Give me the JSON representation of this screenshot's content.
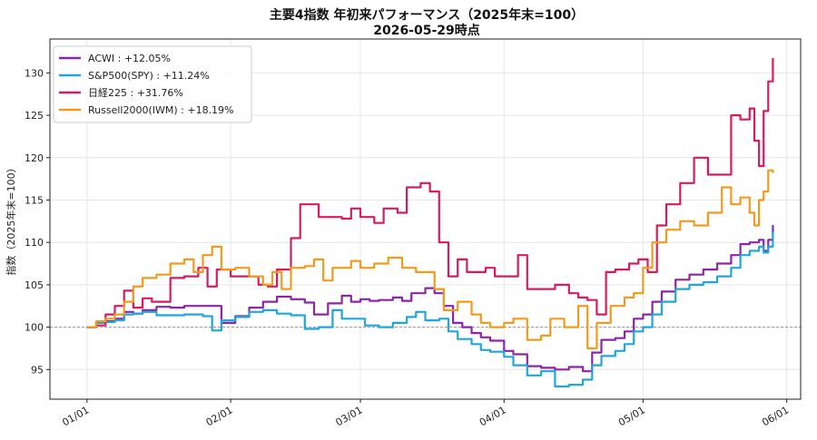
{
  "chart_data": {
    "type": "line",
    "title": "主要4指数 年初来パフォーマンス（2025年末=100）",
    "subtitle": "2026-05-29時点",
    "ylabel": "指数（2025年末=100）",
    "xlabel": "",
    "ylim": [
      91.5,
      134
    ],
    "yticks": [
      95,
      100,
      105,
      110,
      115,
      120,
      125,
      130
    ],
    "xlim": [
      "2025-12-24",
      "2026-06-04"
    ],
    "xticks": [
      {
        "date": "2026-01-01",
        "label": "01/01"
      },
      {
        "date": "2026-02-01",
        "label": "02/01"
      },
      {
        "date": "2026-03-01",
        "label": "03/01"
      },
      {
        "date": "2026-04-01",
        "label": "04/01"
      },
      {
        "date": "2026-05-01",
        "label": "05/01"
      },
      {
        "date": "2026-06-01",
        "label": "06/01"
      }
    ],
    "baseline": 100,
    "grid": true,
    "legend_position": "top-left",
    "series": [
      {
        "name": "ACWI : +12.05%",
        "color": "#8e24aa",
        "points": [
          [
            "2026-01-01",
            100.0
          ],
          [
            "2026-01-03",
            100.6
          ],
          [
            "2026-01-05",
            100.7
          ],
          [
            "2026-01-07",
            101.0
          ],
          [
            "2026-01-09",
            101.8
          ],
          [
            "2026-01-11",
            101.6
          ],
          [
            "2026-01-13",
            102.0
          ],
          [
            "2026-01-16",
            102.4
          ],
          [
            "2026-01-19",
            102.3
          ],
          [
            "2026-01-22",
            102.5
          ],
          [
            "2026-01-26",
            102.5
          ],
          [
            "2026-01-29",
            102.5
          ],
          [
            "2026-01-30",
            100.5
          ],
          [
            "2026-02-02",
            101.3
          ],
          [
            "2026-02-05",
            102.3
          ],
          [
            "2026-02-08",
            103.0
          ],
          [
            "2026-02-11",
            103.6
          ],
          [
            "2026-02-14",
            103.3
          ],
          [
            "2026-02-17",
            102.9
          ],
          [
            "2026-02-19",
            101.5
          ],
          [
            "2026-02-22",
            102.8
          ],
          [
            "2026-02-25",
            103.7
          ],
          [
            "2026-02-27",
            103.0
          ],
          [
            "2026-03-01",
            103.3
          ],
          [
            "2026-03-03",
            103.1
          ],
          [
            "2026-03-05",
            103.2
          ],
          [
            "2026-03-08",
            103.5
          ],
          [
            "2026-03-10",
            103.1
          ],
          [
            "2026-03-12",
            104.0
          ],
          [
            "2026-03-15",
            104.6
          ],
          [
            "2026-03-17",
            104.0
          ],
          [
            "2026-03-19",
            102.5
          ],
          [
            "2026-03-21",
            100.5
          ],
          [
            "2026-03-23",
            100.0
          ],
          [
            "2026-03-25",
            99.3
          ],
          [
            "2026-03-27",
            98.8
          ],
          [
            "2026-03-29",
            98.4
          ],
          [
            "2026-04-01",
            97.2
          ],
          [
            "2026-04-03",
            96.8
          ],
          [
            "2026-04-06",
            95.4
          ],
          [
            "2026-04-09",
            95.2
          ],
          [
            "2026-04-12",
            95.0
          ],
          [
            "2026-04-15",
            95.3
          ],
          [
            "2026-04-18",
            94.8
          ],
          [
            "2026-04-20",
            97.0
          ],
          [
            "2026-04-22",
            98.5
          ],
          [
            "2026-04-25",
            98.7
          ],
          [
            "2026-04-27",
            99.5
          ],
          [
            "2026-04-29",
            101.0
          ],
          [
            "2026-05-01",
            101.5
          ],
          [
            "2026-05-03",
            103.0
          ],
          [
            "2026-05-05",
            104.2
          ],
          [
            "2026-05-08",
            105.6
          ],
          [
            "2026-05-11",
            106.2
          ],
          [
            "2026-05-14",
            106.8
          ],
          [
            "2026-05-17",
            107.5
          ],
          [
            "2026-05-20",
            108.5
          ],
          [
            "2026-05-22",
            109.8
          ],
          [
            "2026-05-24",
            110.0
          ],
          [
            "2026-05-26",
            110.3
          ],
          [
            "2026-05-27",
            109.0
          ],
          [
            "2026-05-28",
            110.3
          ],
          [
            "2026-05-29",
            112.05
          ]
        ]
      },
      {
        "name": "S&P500(SPY) : +11.24%",
        "color": "#1ea7d8",
        "points": [
          [
            "2026-01-01",
            100.0
          ],
          [
            "2026-01-03",
            100.5
          ],
          [
            "2026-01-05",
            100.6
          ],
          [
            "2026-01-07",
            100.8
          ],
          [
            "2026-01-09",
            101.5
          ],
          [
            "2026-01-11",
            101.6
          ],
          [
            "2026-01-13",
            101.8
          ],
          [
            "2026-01-16",
            101.4
          ],
          [
            "2026-01-19",
            101.4
          ],
          [
            "2026-01-22",
            101.5
          ],
          [
            "2026-01-26",
            101.3
          ],
          [
            "2026-01-28",
            99.6
          ],
          [
            "2026-01-30",
            100.8
          ],
          [
            "2026-02-02",
            101.2
          ],
          [
            "2026-02-05",
            101.8
          ],
          [
            "2026-02-08",
            102.0
          ],
          [
            "2026-02-11",
            101.6
          ],
          [
            "2026-02-14",
            101.4
          ],
          [
            "2026-02-17",
            99.8
          ],
          [
            "2026-02-20",
            100.0
          ],
          [
            "2026-02-23",
            102.0
          ],
          [
            "2026-02-25",
            101.0
          ],
          [
            "2026-02-28",
            101.0
          ],
          [
            "2026-03-02",
            100.2
          ],
          [
            "2026-03-05",
            100.0
          ],
          [
            "2026-03-08",
            100.5
          ],
          [
            "2026-03-11",
            101.2
          ],
          [
            "2026-03-13",
            101.8
          ],
          [
            "2026-03-15",
            100.8
          ],
          [
            "2026-03-18",
            101.0
          ],
          [
            "2026-03-20",
            99.5
          ],
          [
            "2026-03-22",
            98.6
          ],
          [
            "2026-03-25",
            98.0
          ],
          [
            "2026-03-27",
            97.3
          ],
          [
            "2026-03-29",
            97.1
          ],
          [
            "2026-04-01",
            96.5
          ],
          [
            "2026-04-03",
            95.5
          ],
          [
            "2026-04-06",
            94.3
          ],
          [
            "2026-04-09",
            94.8
          ],
          [
            "2026-04-12",
            93.0
          ],
          [
            "2026-04-15",
            93.2
          ],
          [
            "2026-04-18",
            93.8
          ],
          [
            "2026-04-20",
            95.5
          ],
          [
            "2026-04-22",
            96.6
          ],
          [
            "2026-04-25",
            97.2
          ],
          [
            "2026-04-27",
            98.0
          ],
          [
            "2026-04-29",
            99.5
          ],
          [
            "2026-05-01",
            100.0
          ],
          [
            "2026-05-03",
            101.5
          ],
          [
            "2026-05-05",
            103.0
          ],
          [
            "2026-05-08",
            104.5
          ],
          [
            "2026-05-11",
            105.0
          ],
          [
            "2026-05-14",
            105.3
          ],
          [
            "2026-05-17",
            106.0
          ],
          [
            "2026-05-20",
            107.0
          ],
          [
            "2026-05-22",
            108.5
          ],
          [
            "2026-05-24",
            109.0
          ],
          [
            "2026-05-26",
            109.5
          ],
          [
            "2026-05-27",
            108.8
          ],
          [
            "2026-05-28",
            109.5
          ],
          [
            "2026-05-29",
            111.24
          ]
        ]
      },
      {
        "name": "日経225 : +31.76%",
        "color": "#d81b60",
        "points": [
          [
            "2026-01-01",
            100.0
          ],
          [
            "2026-01-03",
            100.2
          ],
          [
            "2026-01-05",
            101.5
          ],
          [
            "2026-01-07",
            102.5
          ],
          [
            "2026-01-09",
            104.3
          ],
          [
            "2026-01-11",
            102.3
          ],
          [
            "2026-01-13",
            103.4
          ],
          [
            "2026-01-15",
            103.0
          ],
          [
            "2026-01-17",
            103.0
          ],
          [
            "2026-01-19",
            105.8
          ],
          [
            "2026-01-22",
            106.0
          ],
          [
            "2026-01-25",
            107.0
          ],
          [
            "2026-01-27",
            104.8
          ],
          [
            "2026-01-29",
            106.8
          ],
          [
            "2026-02-01",
            106.0
          ],
          [
            "2026-02-04",
            106.0
          ],
          [
            "2026-02-07",
            105.0
          ],
          [
            "2026-02-09",
            104.8
          ],
          [
            "2026-02-11",
            106.8
          ],
          [
            "2026-02-14",
            110.5
          ],
          [
            "2026-02-16",
            114.5
          ],
          [
            "2026-02-18",
            114.5
          ],
          [
            "2026-02-20",
            113.0
          ],
          [
            "2026-02-22",
            113.0
          ],
          [
            "2026-02-25",
            112.8
          ],
          [
            "2026-02-27",
            114.0
          ],
          [
            "2026-03-01",
            113.0
          ],
          [
            "2026-03-04",
            112.3
          ],
          [
            "2026-03-06",
            114.0
          ],
          [
            "2026-03-09",
            113.5
          ],
          [
            "2026-03-11",
            116.5
          ],
          [
            "2026-03-14",
            117.0
          ],
          [
            "2026-03-16",
            116.0
          ],
          [
            "2026-03-18",
            110.0
          ],
          [
            "2026-03-20",
            106.0
          ],
          [
            "2026-03-22",
            108.0
          ],
          [
            "2026-03-24",
            106.5
          ],
          [
            "2026-03-26",
            106.5
          ],
          [
            "2026-03-28",
            107.0
          ],
          [
            "2026-03-30",
            106.0
          ],
          [
            "2026-04-01",
            106.0
          ],
          [
            "2026-04-04",
            108.5
          ],
          [
            "2026-04-06",
            104.5
          ],
          [
            "2026-04-09",
            104.5
          ],
          [
            "2026-04-12",
            105.0
          ],
          [
            "2026-04-15",
            104.0
          ],
          [
            "2026-04-17",
            103.5
          ],
          [
            "2026-04-19",
            103.2
          ],
          [
            "2026-04-21",
            101.5
          ],
          [
            "2026-04-23",
            106.5
          ],
          [
            "2026-04-25",
            106.8
          ],
          [
            "2026-04-28",
            107.5
          ],
          [
            "2026-04-30",
            108.0
          ],
          [
            "2026-05-02",
            106.5
          ],
          [
            "2026-05-04",
            112.0
          ],
          [
            "2026-05-06",
            114.5
          ],
          [
            "2026-05-09",
            117.0
          ],
          [
            "2026-05-12",
            120.0
          ],
          [
            "2026-05-15",
            118.0
          ],
          [
            "2026-05-18",
            118.0
          ],
          [
            "2026-05-20",
            125.0
          ],
          [
            "2026-05-22",
            124.5
          ],
          [
            "2026-05-24",
            125.8
          ],
          [
            "2026-05-25",
            122.0
          ],
          [
            "2026-05-26",
            119.0
          ],
          [
            "2026-05-27",
            125.5
          ],
          [
            "2026-05-28",
            129.0
          ],
          [
            "2026-05-29",
            131.76
          ]
        ]
      },
      {
        "name": "Russell2000(IWM) : +18.19%",
        "color": "#f29a1c",
        "points": [
          [
            "2026-01-01",
            100.0
          ],
          [
            "2026-01-03",
            100.7
          ],
          [
            "2026-01-05",
            101.0
          ],
          [
            "2026-01-07",
            101.5
          ],
          [
            "2026-01-09",
            103.0
          ],
          [
            "2026-01-11",
            104.8
          ],
          [
            "2026-01-13",
            105.8
          ],
          [
            "2026-01-16",
            106.2
          ],
          [
            "2026-01-19",
            107.5
          ],
          [
            "2026-01-22",
            108.0
          ],
          [
            "2026-01-24",
            106.5
          ],
          [
            "2026-01-26",
            108.5
          ],
          [
            "2026-01-28",
            109.5
          ],
          [
            "2026-01-30",
            106.8
          ],
          [
            "2026-02-02",
            107.0
          ],
          [
            "2026-02-05",
            106.0
          ],
          [
            "2026-02-08",
            105.0
          ],
          [
            "2026-02-10",
            106.5
          ],
          [
            "2026-02-12",
            104.5
          ],
          [
            "2026-02-14",
            107.0
          ],
          [
            "2026-02-17",
            107.2
          ],
          [
            "2026-02-19",
            108.0
          ],
          [
            "2026-02-21",
            105.5
          ],
          [
            "2026-02-23",
            107.0
          ],
          [
            "2026-02-25",
            107.0
          ],
          [
            "2026-02-27",
            107.8
          ],
          [
            "2026-03-01",
            107.0
          ],
          [
            "2026-03-04",
            107.5
          ],
          [
            "2026-03-07",
            108.2
          ],
          [
            "2026-03-10",
            107.0
          ],
          [
            "2026-03-13",
            106.5
          ],
          [
            "2026-03-15",
            106.5
          ],
          [
            "2026-03-17",
            104.5
          ],
          [
            "2026-03-19",
            102.0
          ],
          [
            "2026-03-22",
            103.0
          ],
          [
            "2026-03-25",
            101.5
          ],
          [
            "2026-03-27",
            100.5
          ],
          [
            "2026-03-29",
            100.0
          ],
          [
            "2026-04-01",
            100.5
          ],
          [
            "2026-04-03",
            101.0
          ],
          [
            "2026-04-06",
            98.5
          ],
          [
            "2026-04-09",
            99.0
          ],
          [
            "2026-04-11",
            101.0
          ],
          [
            "2026-04-14",
            100.0
          ],
          [
            "2026-04-17",
            102.5
          ],
          [
            "2026-04-19",
            97.5
          ],
          [
            "2026-04-21",
            100.5
          ],
          [
            "2026-04-24",
            102.5
          ],
          [
            "2026-04-27",
            103.5
          ],
          [
            "2026-04-29",
            104.0
          ],
          [
            "2026-05-01",
            107.0
          ],
          [
            "2026-05-03",
            110.0
          ],
          [
            "2026-05-06",
            111.5
          ],
          [
            "2026-05-09",
            112.5
          ],
          [
            "2026-05-12",
            112.0
          ],
          [
            "2026-05-15",
            113.5
          ],
          [
            "2026-05-18",
            116.5
          ],
          [
            "2026-05-20",
            114.5
          ],
          [
            "2026-05-22",
            115.3
          ],
          [
            "2026-05-24",
            113.5
          ],
          [
            "2026-05-25",
            112.0
          ],
          [
            "2026-05-26",
            115.0
          ],
          [
            "2026-05-27",
            116.0
          ],
          [
            "2026-05-28",
            118.5
          ],
          [
            "2026-05-29",
            118.19
          ]
        ]
      }
    ]
  }
}
